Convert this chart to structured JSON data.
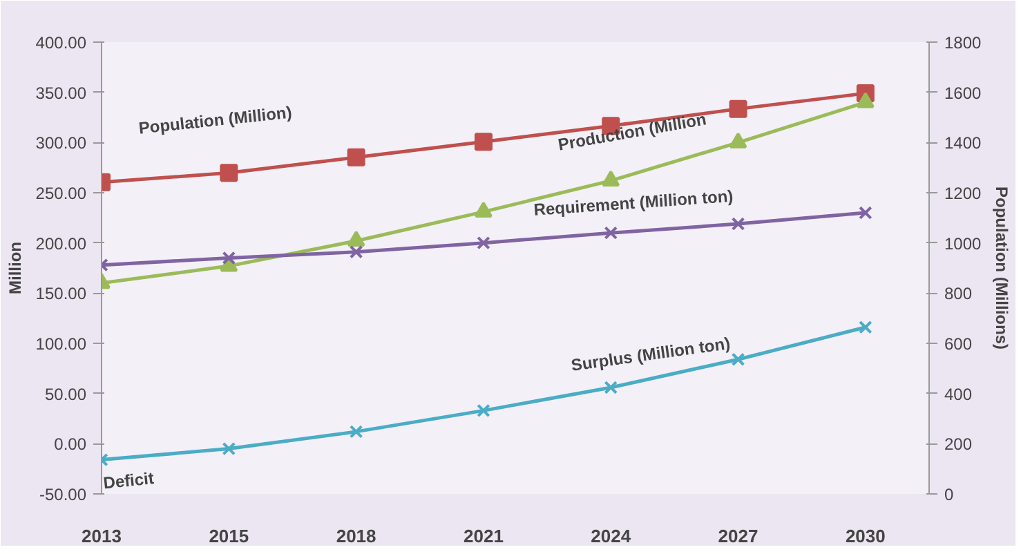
{
  "chart_data": {
    "type": "line",
    "ylabel": "Million",
    "y2label": "Population (Millions)",
    "categories": [
      "2013",
      "2015",
      "2018",
      "2021",
      "2024",
      "2027",
      "2030"
    ],
    "ylim": [
      -50,
      400
    ],
    "yticks": [
      {
        "value": -50,
        "label": "-50.00"
      },
      {
        "value": 0,
        "label": "0.00"
      },
      {
        "value": 50,
        "label": "50.00"
      },
      {
        "value": 100,
        "label": "100.00"
      },
      {
        "value": 150,
        "label": "150.00"
      },
      {
        "value": 200,
        "label": "200.00"
      },
      {
        "value": 250,
        "label": "250.00"
      },
      {
        "value": 300,
        "label": "300.00"
      },
      {
        "value": 350,
        "label": "350.00"
      },
      {
        "value": 400,
        "label": "400.00"
      }
    ],
    "y2lim": [
      0,
      1800
    ],
    "y2ticks": [
      0,
      200,
      400,
      600,
      800,
      1000,
      1200,
      1400,
      1600,
      1800
    ],
    "series": [
      {
        "name": "Population (Million)",
        "color": "#c0504d",
        "axis": "y2",
        "marker": "square",
        "values": [
          1242,
          1279,
          1341,
          1403,
          1466,
          1534,
          1596
        ]
      },
      {
        "name": "Production (Million",
        "color": "#9bbb59",
        "marker": "triangle",
        "values": [
          160,
          177,
          202,
          231,
          262,
          300,
          340
        ]
      },
      {
        "name": "Requirement (Million ton)",
        "color": "#8064a2",
        "marker": "cross",
        "values": [
          178,
          185,
          191,
          200,
          210,
          219,
          230
        ]
      },
      {
        "name": "Surplus (Million ton)",
        "color": "#4bacc6",
        "marker": "cross",
        "values": [
          -16,
          -5,
          12,
          33,
          56,
          84,
          116
        ]
      }
    ],
    "annotations": [
      {
        "text": "Deficit",
        "x": "2013",
        "y": -16
      }
    ],
    "grid": false,
    "line_style": "solid"
  }
}
